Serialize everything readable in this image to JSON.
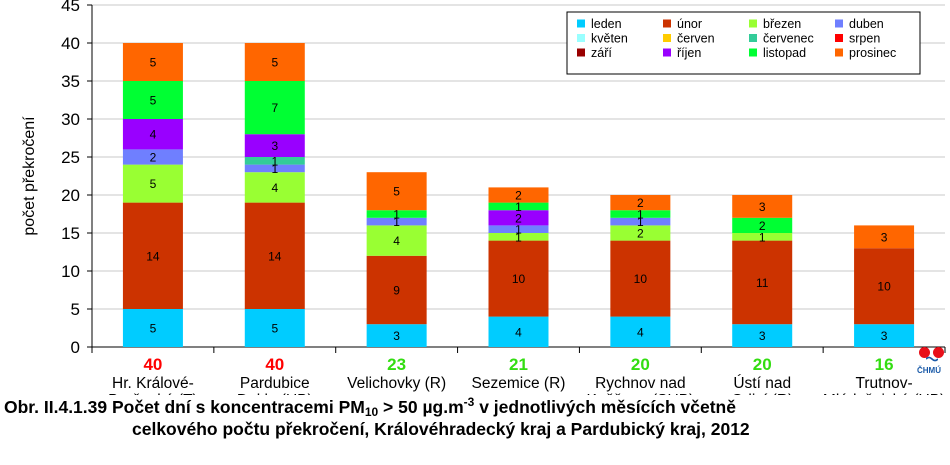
{
  "chart_data": {
    "type": "bar",
    "stacked": true,
    "ylabel": "počet překročení",
    "ylim": [
      0,
      45
    ],
    "ytick_step": 5,
    "grid": true,
    "legend_position": "top-right",
    "categories": [
      {
        "label_lines": [
          "Hr. Králové-",
          "Brněnská (T)"
        ],
        "total": "40",
        "total_color": "#ff0000"
      },
      {
        "label_lines": [
          "Pardubice",
          "Dukla (UB)"
        ],
        "total": "40",
        "total_color": "#ff0000"
      },
      {
        "label_lines": [
          "Velichovky (R)"
        ],
        "total": "23",
        "total_color": "#33dd11"
      },
      {
        "label_lines": [
          "Sezemice (R)"
        ],
        "total": "21",
        "total_color": "#33dd11"
      },
      {
        "label_lines": [
          "Rychnov nad",
          "Kněžnou (SUB)"
        ],
        "total": "20",
        "total_color": "#33dd11"
      },
      {
        "label_lines": [
          "Ústí nad",
          "Orlicí (R)"
        ],
        "total": "20",
        "total_color": "#33dd11"
      },
      {
        "label_lines": [
          "Trutnov-",
          "Mládežnická (UB)"
        ],
        "total": "16",
        "total_color": "#33dd11"
      }
    ],
    "series": [
      {
        "name": "leden",
        "color": "#00ccff",
        "values": [
          5,
          5,
          3,
          4,
          4,
          3,
          3
        ]
      },
      {
        "name": "únor",
        "color": "#cc3300",
        "values": [
          14,
          14,
          9,
          10,
          10,
          11,
          10
        ]
      },
      {
        "name": "březen",
        "color": "#99ff33",
        "values": [
          5,
          4,
          4,
          1,
          2,
          1,
          0
        ]
      },
      {
        "name": "duben",
        "color": "#6f7fff",
        "values": [
          2,
          1,
          1,
          1,
          1,
          0,
          0
        ]
      },
      {
        "name": "květen",
        "color": "#99ffff",
        "values": [
          0,
          0,
          0,
          0,
          0,
          0,
          0
        ]
      },
      {
        "name": "červen",
        "color": "#ffcc00",
        "values": [
          0,
          0,
          0,
          0,
          0,
          0,
          0
        ]
      },
      {
        "name": "červenec",
        "color": "#33cc99",
        "values": [
          0,
          1,
          0,
          0,
          0,
          0,
          0
        ]
      },
      {
        "name": "srpen",
        "color": "#ff0000",
        "values": [
          0,
          0,
          0,
          0,
          0,
          0,
          0
        ]
      },
      {
        "name": "září",
        "color": "#990000",
        "values": [
          0,
          0,
          0,
          0,
          0,
          0,
          0
        ]
      },
      {
        "name": "říjen",
        "color": "#9900ff",
        "values": [
          4,
          3,
          0,
          2,
          0,
          0,
          0
        ]
      },
      {
        "name": "listopad",
        "color": "#00ff33",
        "values": [
          5,
          7,
          1,
          1,
          1,
          2,
          0
        ]
      },
      {
        "name": "prosinec",
        "color": "#ff6600",
        "values": [
          5,
          5,
          5,
          2,
          2,
          3,
          3
        ]
      }
    ]
  },
  "caption": {
    "line1_pre": "Obr. II.4.1.39  Počet dní s koncentracemi PM",
    "line1_sub": "10",
    "line1_mid": " > 50 µg.m",
    "line1_sup": "-3",
    "line1_post": " v jednotlivých měsících včetně",
    "line2": "celkového počtu překročení, Královéhradecký kraj a Pardubický kraj, 2012"
  },
  "logo": {
    "text": "ČHMÚ"
  }
}
